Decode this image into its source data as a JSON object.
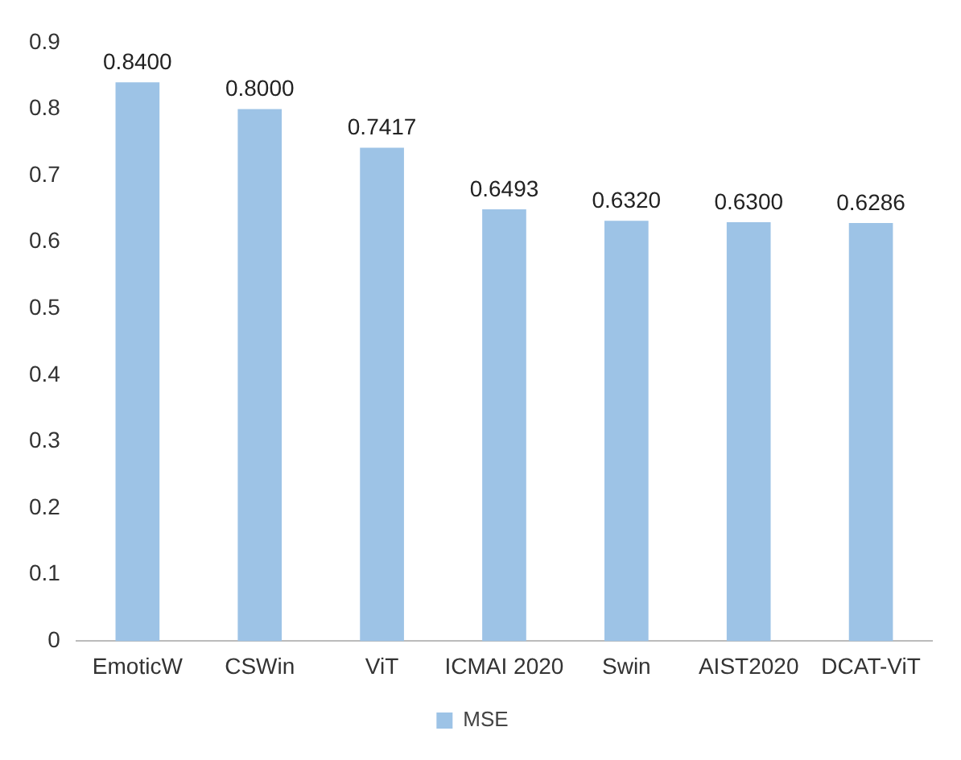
{
  "chart_data": {
    "type": "bar",
    "categories": [
      "EmoticW",
      "CSWin",
      "ViT",
      "ICMAI 2020",
      "Swin",
      "AIST2020",
      "DCAT-ViT"
    ],
    "series": [
      {
        "name": "MSE",
        "color": "#9dc3e6",
        "values": [
          0.84,
          0.8,
          0.7417,
          0.6493,
          0.632,
          0.63,
          0.6286
        ],
        "value_labels": [
          "0.8400",
          "0.8000",
          "0.7417",
          "0.6493",
          "0.6320",
          "0.6300",
          "0.6286"
        ]
      }
    ],
    "ylim": [
      0,
      0.9
    ],
    "yticks": [
      0,
      0.1,
      0.2,
      0.3,
      0.4,
      0.5,
      0.6,
      0.7,
      0.8,
      0.9
    ],
    "grid": false,
    "legend": "bottom"
  }
}
